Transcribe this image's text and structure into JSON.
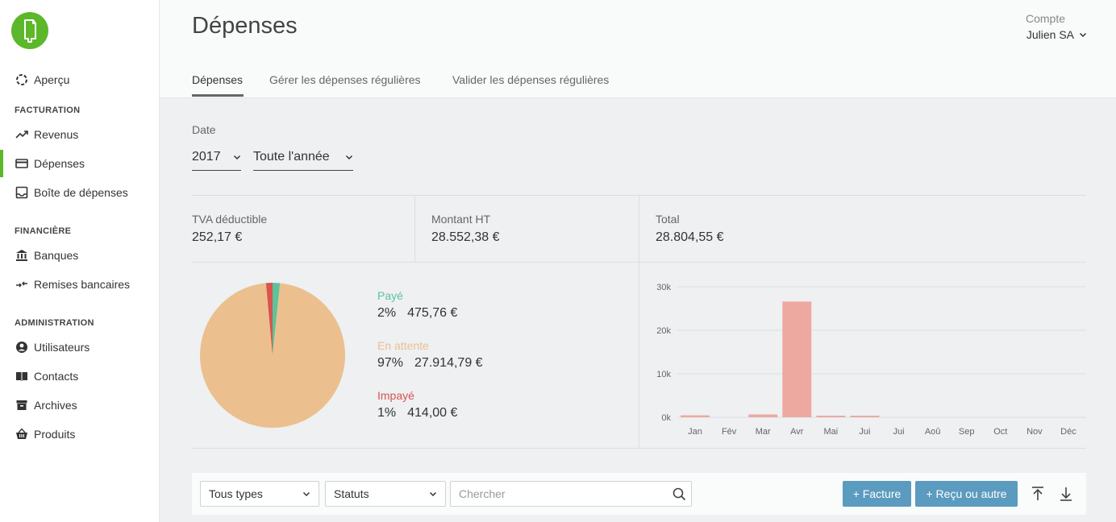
{
  "app": {
    "brand_color": "#5cb82a"
  },
  "sidebar": {
    "overview": {
      "label": "Aperçu",
      "icon": "loader-icon"
    },
    "sections": [
      {
        "title": "FACTURATION"
      },
      {
        "title": "FINANCIÈRE"
      },
      {
        "title": "ADMINISTRATION"
      }
    ],
    "items": [
      {
        "label": "Revenus",
        "icon": "trending-up-icon"
      },
      {
        "label": "Dépenses",
        "icon": "credit-card-icon",
        "active": true
      },
      {
        "label": "Boîte de dépenses",
        "icon": "inbox-icon"
      },
      {
        "label": "Banques",
        "icon": "bank-icon"
      },
      {
        "label": "Remises bancaires",
        "icon": "transfer-icon"
      },
      {
        "label": "Utilisateurs",
        "icon": "user-icon"
      },
      {
        "label": "Contacts",
        "icon": "book-icon"
      },
      {
        "label": "Archives",
        "icon": "archive-icon"
      },
      {
        "label": "Produits",
        "icon": "basket-icon"
      }
    ]
  },
  "header": {
    "title": "Dépenses",
    "account_label": "Compte",
    "account_name": "Julien SA",
    "tabs": [
      {
        "label": "Dépenses",
        "active": true
      },
      {
        "label": "Gérer les dépenses régulières"
      },
      {
        "label": "Valider les dépenses régulières"
      }
    ]
  },
  "filters": {
    "date_label": "Date",
    "year": "2017",
    "period": "Toute l'année"
  },
  "stats": [
    {
      "label": "TVA déductible",
      "value": "252,17 €"
    },
    {
      "label": "Montant HT",
      "value": "28.552,38 €"
    },
    {
      "label": "Total",
      "value": "28.804,55 €"
    }
  ],
  "status_breakdown": [
    {
      "label": "Payé",
      "percent": "2%",
      "amount": "475,76 €",
      "share": 0.0165,
      "color": "#5cc39a"
    },
    {
      "label": "En attente",
      "percent": "97%",
      "amount": "27.914,79 €",
      "share": 0.9691,
      "color": "#ebc08e"
    },
    {
      "label": "Impayé",
      "percent": "1%",
      "amount": "414,00 €",
      "share": 0.0144,
      "color": "#d9534f"
    }
  ],
  "chart_data": {
    "type": "bar",
    "categories": [
      "Jan",
      "Fév",
      "Mar",
      "Avr",
      "Mai",
      "Jui",
      "Jui",
      "Aoû",
      "Sep",
      "Oct",
      "Nov",
      "Déc"
    ],
    "values": [
      450,
      0,
      650,
      26600,
      300,
      200,
      0,
      0,
      0,
      0,
      0,
      0
    ],
    "y_ticks": [
      "0k",
      "10k",
      "20k",
      "30k"
    ],
    "ylim": [
      0,
      30000
    ],
    "grid": true,
    "bar_color": "#eda9a0"
  },
  "toolbar": {
    "type_select": "Tous types",
    "status_select": "Statuts",
    "search_placeholder": "Chercher",
    "new_invoice": "+ Facture",
    "new_receipt": "+ Reçu ou autre"
  }
}
